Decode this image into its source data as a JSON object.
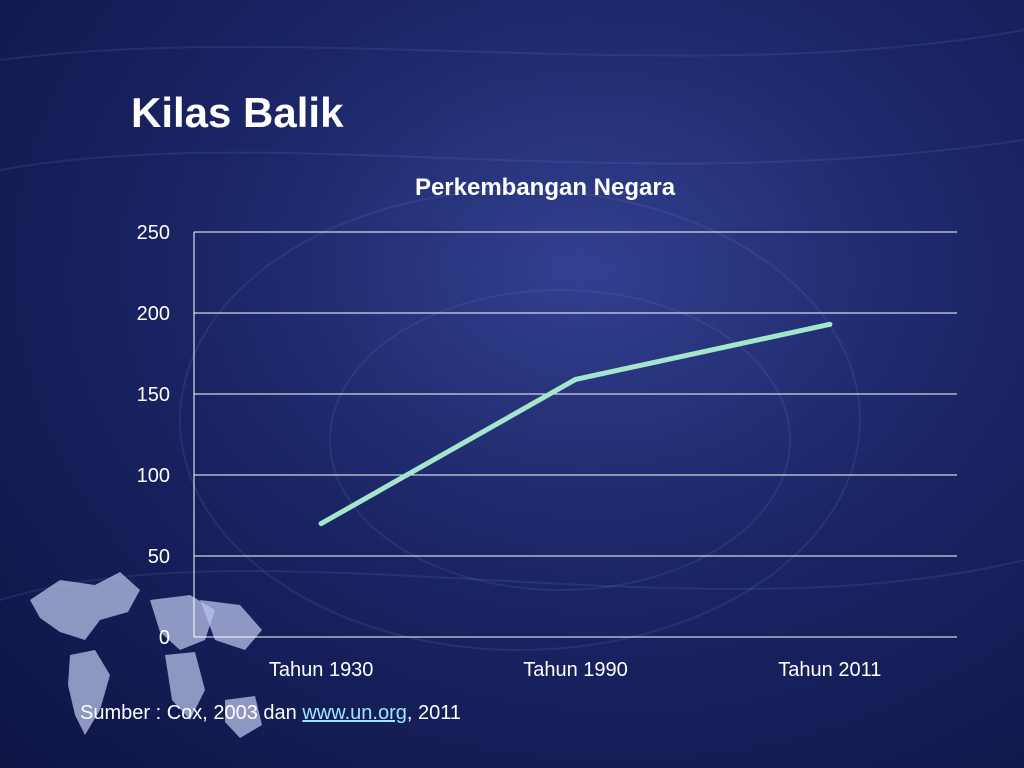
{
  "slide": {
    "title": "Kilas Balik"
  },
  "chart_data": {
    "type": "line",
    "title": "Perkembangan Negara",
    "categories": [
      "Tahun 1930",
      "Tahun 1990",
      "Tahun 2011"
    ],
    "series": [
      {
        "values": [
          70,
          159,
          193
        ],
        "color": "#a3e6cc"
      }
    ],
    "xlabel": "",
    "ylabel": "",
    "ylim": [
      0,
      250
    ],
    "yticks": [
      0,
      50,
      100,
      150,
      200,
      250
    ],
    "grid": true,
    "legend": "none"
  },
  "source": {
    "prefix": "Sumber : Cox, 2003 dan ",
    "link_text": "www.un.org",
    "suffix": ", 2011"
  }
}
